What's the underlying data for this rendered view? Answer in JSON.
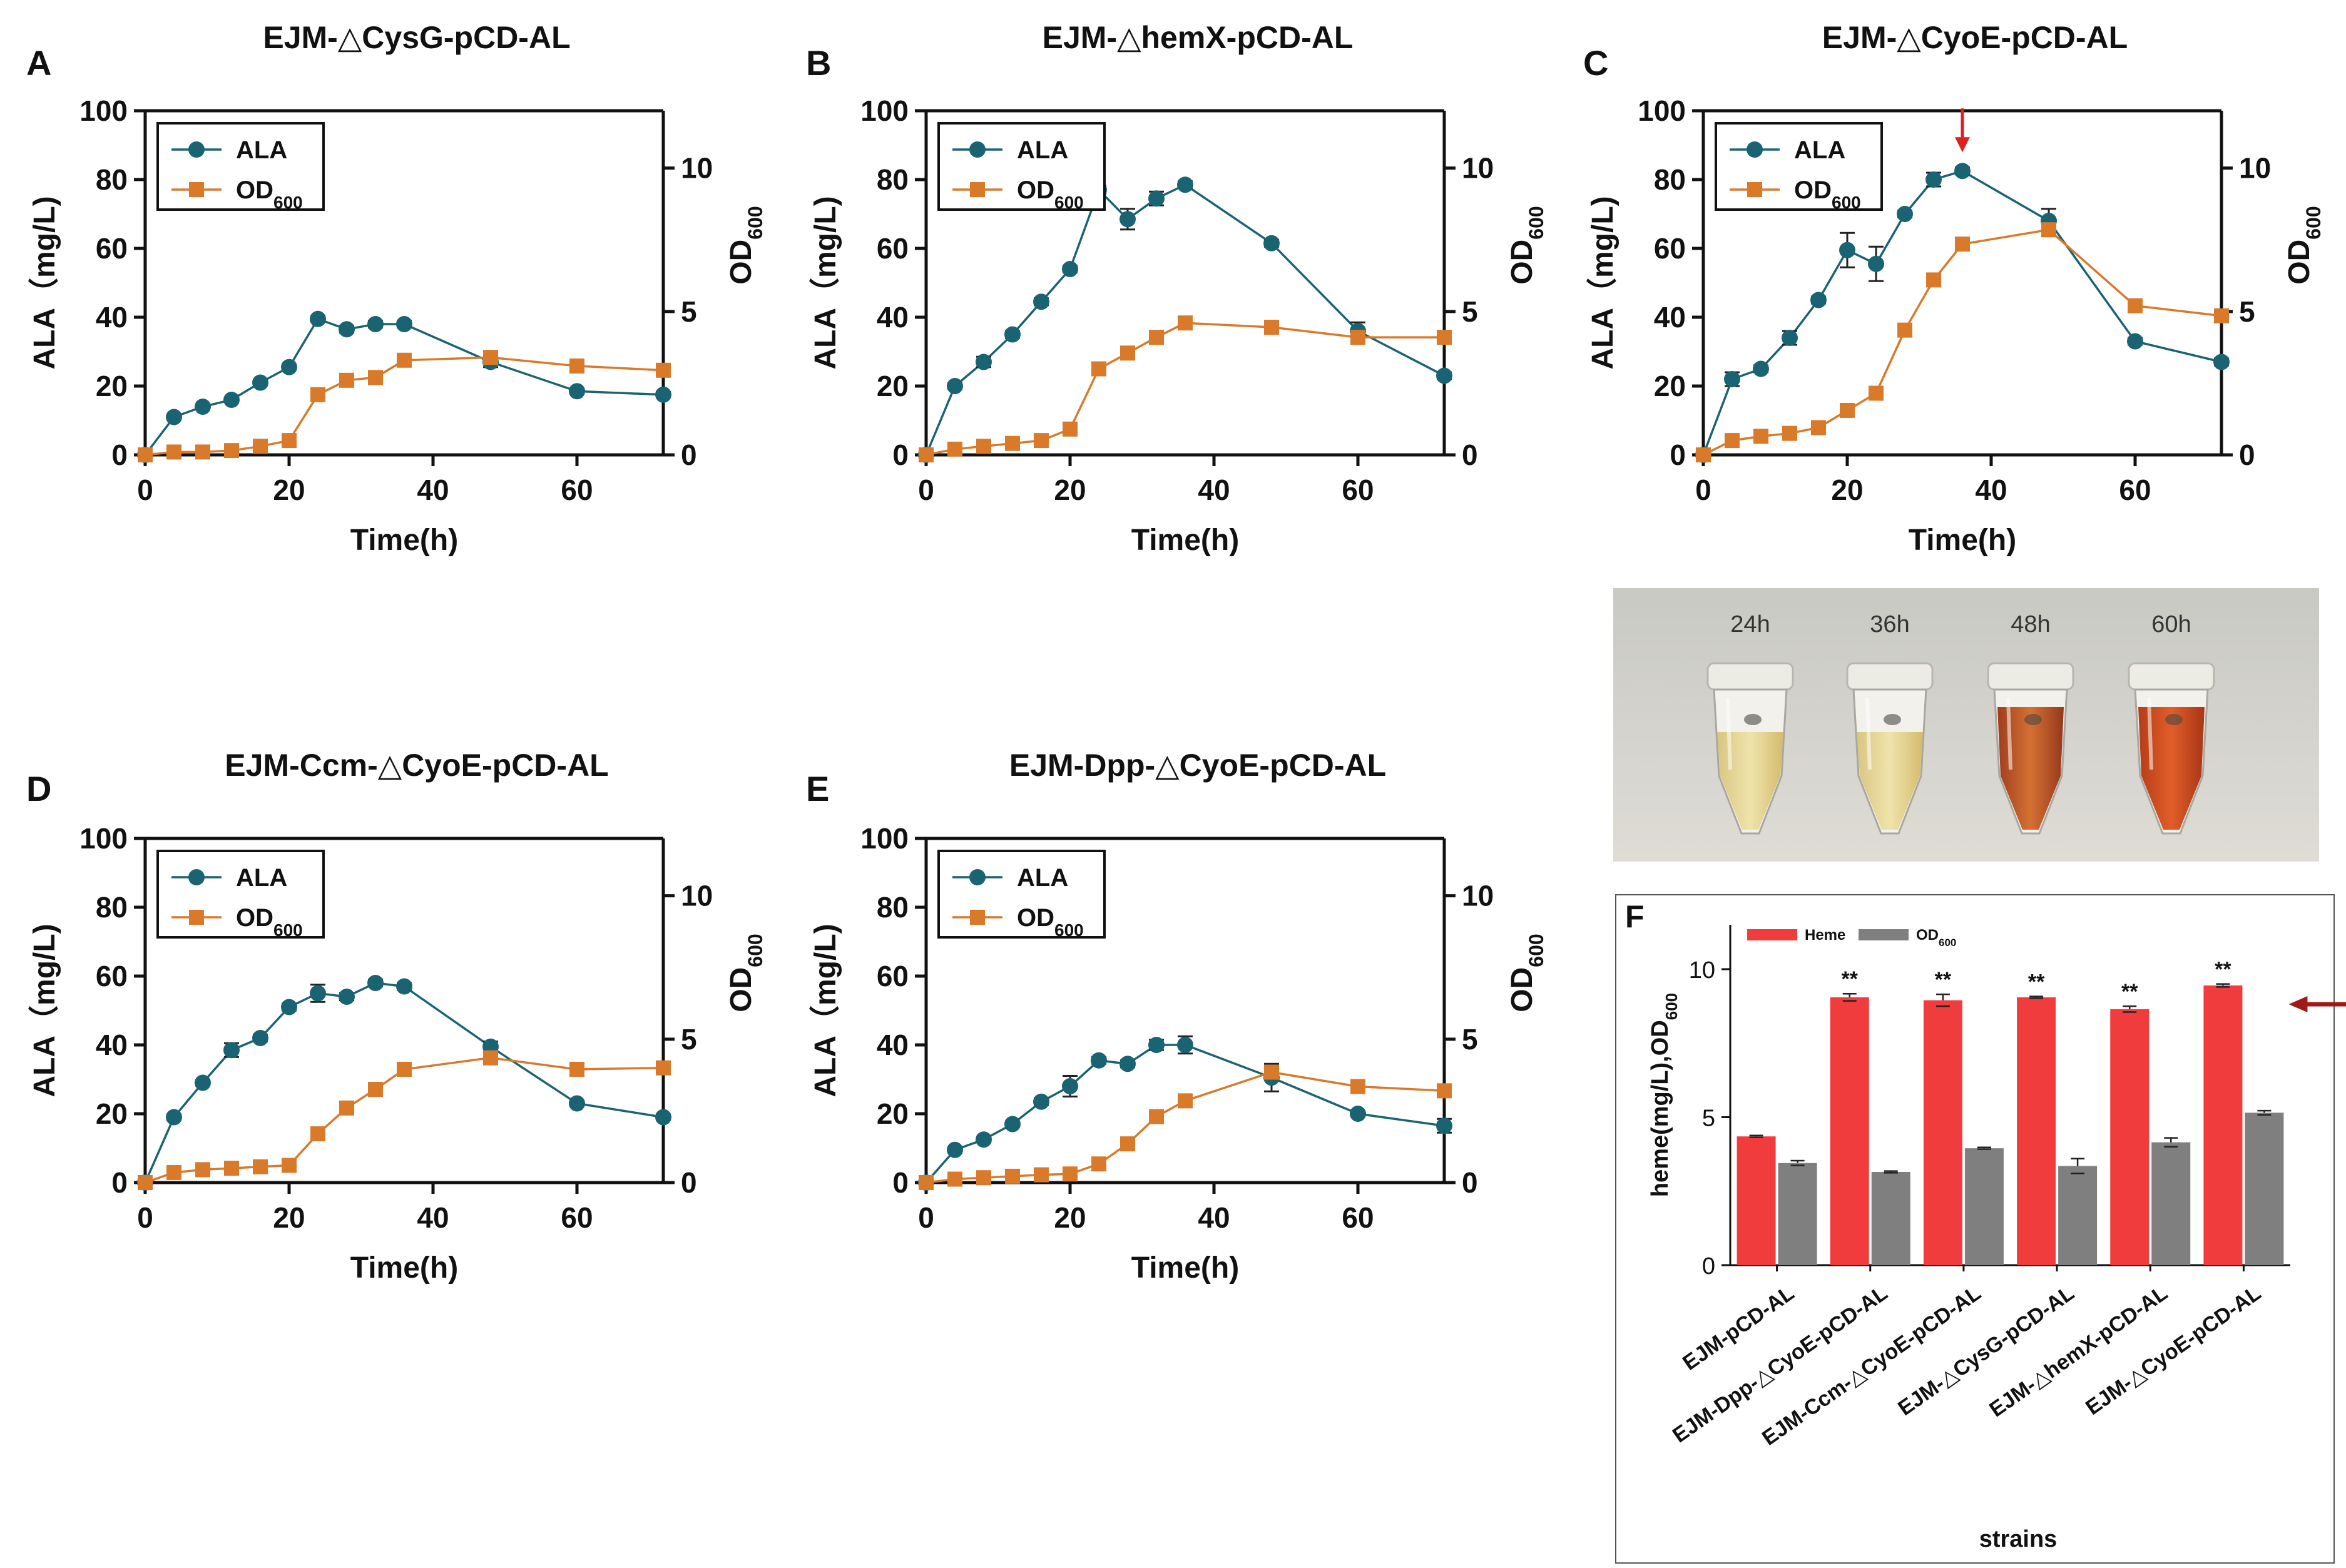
{
  "colors": {
    "ala": "#1a6373",
    "od": "#d97a2b",
    "heme": "#f03c3c",
    "od_bar": "#7f7f7f",
    "marker_arrow": "#e02020",
    "f_arrow": "#a01818"
  },
  "chart_data": [
    {
      "panel": "A",
      "type": "line",
      "title": "EJM-△CysG-pCD-AL",
      "xlabel": "Time(h)",
      "ylabel": "ALA（mg/L)",
      "y2label": "OD600",
      "xlim": [
        0,
        72
      ],
      "ylim": [
        0,
        100
      ],
      "y2lim": [
        0,
        12
      ],
      "xticks": [
        0,
        20,
        40,
        60
      ],
      "yticks": [
        0,
        20,
        40,
        60,
        80,
        100
      ],
      "y2ticks": [
        0,
        5,
        10
      ],
      "legend": "top-left",
      "series": [
        {
          "name": "ALA",
          "axis": "left",
          "marker": "circle",
          "x": [
            0,
            4,
            8,
            12,
            16,
            20,
            24,
            28,
            32,
            36,
            48,
            60,
            72
          ],
          "y": [
            0,
            11,
            14,
            16,
            21,
            25.5,
            39.5,
            36.5,
            38,
            38,
            27,
            18.5,
            17.5
          ],
          "err": [
            0,
            0.5,
            0.5,
            0.5,
            0.8,
            0.8,
            0.8,
            1,
            1,
            1,
            1.5,
            0.8,
            0.8
          ]
        },
        {
          "name": "OD600",
          "axis": "right",
          "marker": "square",
          "x": [
            0,
            4,
            8,
            12,
            16,
            20,
            24,
            28,
            32,
            36,
            48,
            60,
            72
          ],
          "y": [
            0,
            0.1,
            0.1,
            0.15,
            0.3,
            0.5,
            2.1,
            2.6,
            2.7,
            3.3,
            3.4,
            3.1,
            2.95
          ],
          "err": [
            0,
            0,
            0,
            0,
            0,
            0,
            0.1,
            0.1,
            0.1,
            0.1,
            0.15,
            0.15,
            0.1
          ]
        }
      ]
    },
    {
      "panel": "B",
      "type": "line",
      "title": "EJM-△hemX-pCD-AL",
      "xlabel": "Time(h)",
      "ylabel": "ALA（mg/L)",
      "y2label": "OD600",
      "xlim": [
        0,
        72
      ],
      "ylim": [
        0,
        100
      ],
      "y2lim": [
        0,
        12
      ],
      "xticks": [
        0,
        20,
        40,
        60
      ],
      "yticks": [
        0,
        20,
        40,
        60,
        80,
        100
      ],
      "y2ticks": [
        0,
        5,
        10
      ],
      "legend": "top-left",
      "series": [
        {
          "name": "ALA",
          "axis": "left",
          "marker": "circle",
          "x": [
            0,
            4,
            8,
            12,
            16,
            20,
            24,
            28,
            32,
            36,
            48,
            60,
            72
          ],
          "y": [
            0,
            20,
            27,
            35,
            44.5,
            54,
            77,
            68.5,
            74.5,
            78.5,
            61.5,
            36,
            23
          ],
          "err": [
            0,
            0.8,
            1.5,
            1,
            1,
            1,
            1.2,
            3,
            2,
            1,
            1,
            2.5,
            1
          ]
        },
        {
          "name": "OD600",
          "axis": "right",
          "marker": "square",
          "x": [
            0,
            4,
            8,
            12,
            16,
            20,
            24,
            28,
            32,
            36,
            48,
            60,
            72
          ],
          "y": [
            0,
            0.2,
            0.3,
            0.4,
            0.5,
            0.9,
            3.0,
            3.55,
            4.1,
            4.6,
            4.45,
            4.1,
            4.1
          ],
          "err": [
            0,
            0,
            0,
            0,
            0,
            0,
            0.1,
            0.1,
            0.15,
            0.1,
            0.1,
            0.15,
            0.1
          ]
        }
      ]
    },
    {
      "panel": "C",
      "type": "line",
      "title": "EJM-△CyoE-pCD-AL",
      "xlabel": "Time(h)",
      "ylabel": "ALA（mg/L)",
      "y2label": "OD600",
      "xlim": [
        0,
        72
      ],
      "ylim": [
        0,
        100
      ],
      "y2lim": [
        0,
        12
      ],
      "xticks": [
        0,
        20,
        40,
        60
      ],
      "yticks": [
        0,
        20,
        40,
        60,
        80,
        100
      ],
      "y2ticks": [
        0,
        5,
        10
      ],
      "legend": "top-left",
      "annotation": "red arrow marking peak ALA at 36 h",
      "series": [
        {
          "name": "ALA",
          "axis": "left",
          "marker": "circle",
          "x": [
            0,
            4,
            8,
            12,
            16,
            20,
            24,
            28,
            32,
            36,
            48,
            60,
            72
          ],
          "y": [
            0,
            22,
            25,
            34,
            45,
            59.5,
            55.5,
            70,
            80,
            82.5,
            68,
            33,
            27
          ],
          "err": [
            0,
            2,
            1,
            2,
            1,
            5,
            5,
            1,
            2,
            1,
            3.5,
            1,
            1
          ]
        },
        {
          "name": "OD600",
          "axis": "right",
          "marker": "square",
          "x": [
            0,
            4,
            8,
            12,
            16,
            20,
            24,
            28,
            32,
            36,
            48,
            60,
            72
          ],
          "y": [
            0,
            0.5,
            0.65,
            0.75,
            0.95,
            1.55,
            2.15,
            4.35,
            6.1,
            7.35,
            7.85,
            5.2,
            4.85
          ],
          "err": [
            0,
            0,
            0,
            0,
            0.1,
            0.1,
            0.1,
            0.15,
            0.15,
            0.1,
            0.15,
            0.1,
            0.1
          ]
        }
      ]
    },
    {
      "panel": "D",
      "type": "line",
      "title": "EJM-Ccm-△CyoE-pCD-AL",
      "xlabel": "Time(h)",
      "ylabel": "ALA（mg/L)",
      "y2label": "OD600",
      "xlim": [
        0,
        72
      ],
      "ylim": [
        0,
        100
      ],
      "y2lim": [
        0,
        12
      ],
      "xticks": [
        0,
        20,
        40,
        60
      ],
      "yticks": [
        0,
        20,
        40,
        60,
        80,
        100
      ],
      "y2ticks": [
        0,
        5,
        10
      ],
      "legend": "top-left",
      "series": [
        {
          "name": "ALA",
          "axis": "left",
          "marker": "circle",
          "x": [
            0,
            4,
            8,
            12,
            16,
            20,
            24,
            28,
            32,
            36,
            48,
            60,
            72
          ],
          "y": [
            0,
            19,
            29,
            38.5,
            42,
            51,
            55,
            54,
            58,
            57,
            39.5,
            23,
            19
          ],
          "err": [
            0,
            0.8,
            0.8,
            2,
            1,
            1,
            2.5,
            1,
            1,
            1,
            1.5,
            0.8,
            0.8
          ]
        },
        {
          "name": "OD600",
          "axis": "right",
          "marker": "square",
          "x": [
            0,
            4,
            8,
            12,
            16,
            20,
            24,
            28,
            32,
            36,
            48,
            60,
            72
          ],
          "y": [
            0,
            0.35,
            0.45,
            0.5,
            0.55,
            0.6,
            1.7,
            2.6,
            3.25,
            3.95,
            4.35,
            3.95,
            4.0
          ],
          "err": [
            0,
            0,
            0,
            0,
            0,
            0,
            0.1,
            0.1,
            0.1,
            0.1,
            0.1,
            0.1,
            0.1
          ]
        }
      ]
    },
    {
      "panel": "E",
      "type": "line",
      "title": "EJM-Dpp-△CyoE-pCD-AL",
      "xlabel": "Time(h)",
      "ylabel": "ALA（mg/L)",
      "y2label": "OD600",
      "xlim": [
        0,
        72
      ],
      "ylim": [
        0,
        100
      ],
      "y2lim": [
        0,
        12
      ],
      "xticks": [
        0,
        20,
        40,
        60
      ],
      "yticks": [
        0,
        20,
        40,
        60,
        80,
        100
      ],
      "y2ticks": [
        0,
        5,
        10
      ],
      "legend": "top-left",
      "series": [
        {
          "name": "ALA",
          "axis": "left",
          "marker": "circle",
          "x": [
            0,
            4,
            8,
            12,
            16,
            20,
            24,
            28,
            32,
            36,
            48,
            60,
            72
          ],
          "y": [
            0,
            9.5,
            12.5,
            17,
            23.5,
            28,
            35.5,
            34.5,
            40,
            40,
            30.5,
            20,
            16.5
          ],
          "err": [
            0,
            0.8,
            0.8,
            0.8,
            1,
            3,
            1,
            1,
            1.5,
            2.5,
            4,
            0.8,
            2
          ]
        },
        {
          "name": "OD600",
          "axis": "right",
          "marker": "square",
          "x": [
            0,
            4,
            8,
            12,
            16,
            20,
            24,
            28,
            32,
            36,
            48,
            60,
            72
          ],
          "y": [
            0,
            0.12,
            0.17,
            0.22,
            0.27,
            0.3,
            0.65,
            1.35,
            2.3,
            2.85,
            3.85,
            3.35,
            3.2
          ],
          "err": [
            0,
            0,
            0,
            0,
            0,
            0,
            0.05,
            0.1,
            0.1,
            0.1,
            0.15,
            0.1,
            0.1
          ]
        }
      ]
    },
    {
      "panel": "F",
      "type": "bar",
      "xlabel": "strains",
      "ylabel": "heme(mg/L),OD600",
      "ylim": [
        0,
        11.5
      ],
      "yticks": [
        0,
        5,
        10
      ],
      "legend": "top",
      "categories": [
        "EJM-pCD-AL",
        "EJM-Dpp-△CyoE-pCD-AL",
        "EJM-Ccm-△CyoE-pCD-AL",
        "EJM-△CysG-pCD-AL",
        "EJM-△hemX-pCD-AL",
        "EJM-△CyoE-pCD-AL"
      ],
      "series": [
        {
          "name": "Heme",
          "values": [
            4.35,
            9.05,
            8.95,
            9.05,
            8.65,
            9.45
          ],
          "err": [
            0.03,
            0.12,
            0.2,
            0.03,
            0.1,
            0.05
          ]
        },
        {
          "name": "OD600",
          "values": [
            3.45,
            3.15,
            3.95,
            3.35,
            4.15,
            5.15
          ],
          "err": [
            0.08,
            0.03,
            0.03,
            0.25,
            0.15,
            0.07
          ]
        }
      ],
      "significance": [
        "",
        "**",
        "**",
        "**",
        "**",
        "**"
      ],
      "annotation": "dark red arrow pointing to EJM-△CyoE-pCD-AL heme bar"
    }
  ],
  "photo": {
    "tube_labels": [
      "24h",
      "36h",
      "48h",
      "60h"
    ]
  }
}
